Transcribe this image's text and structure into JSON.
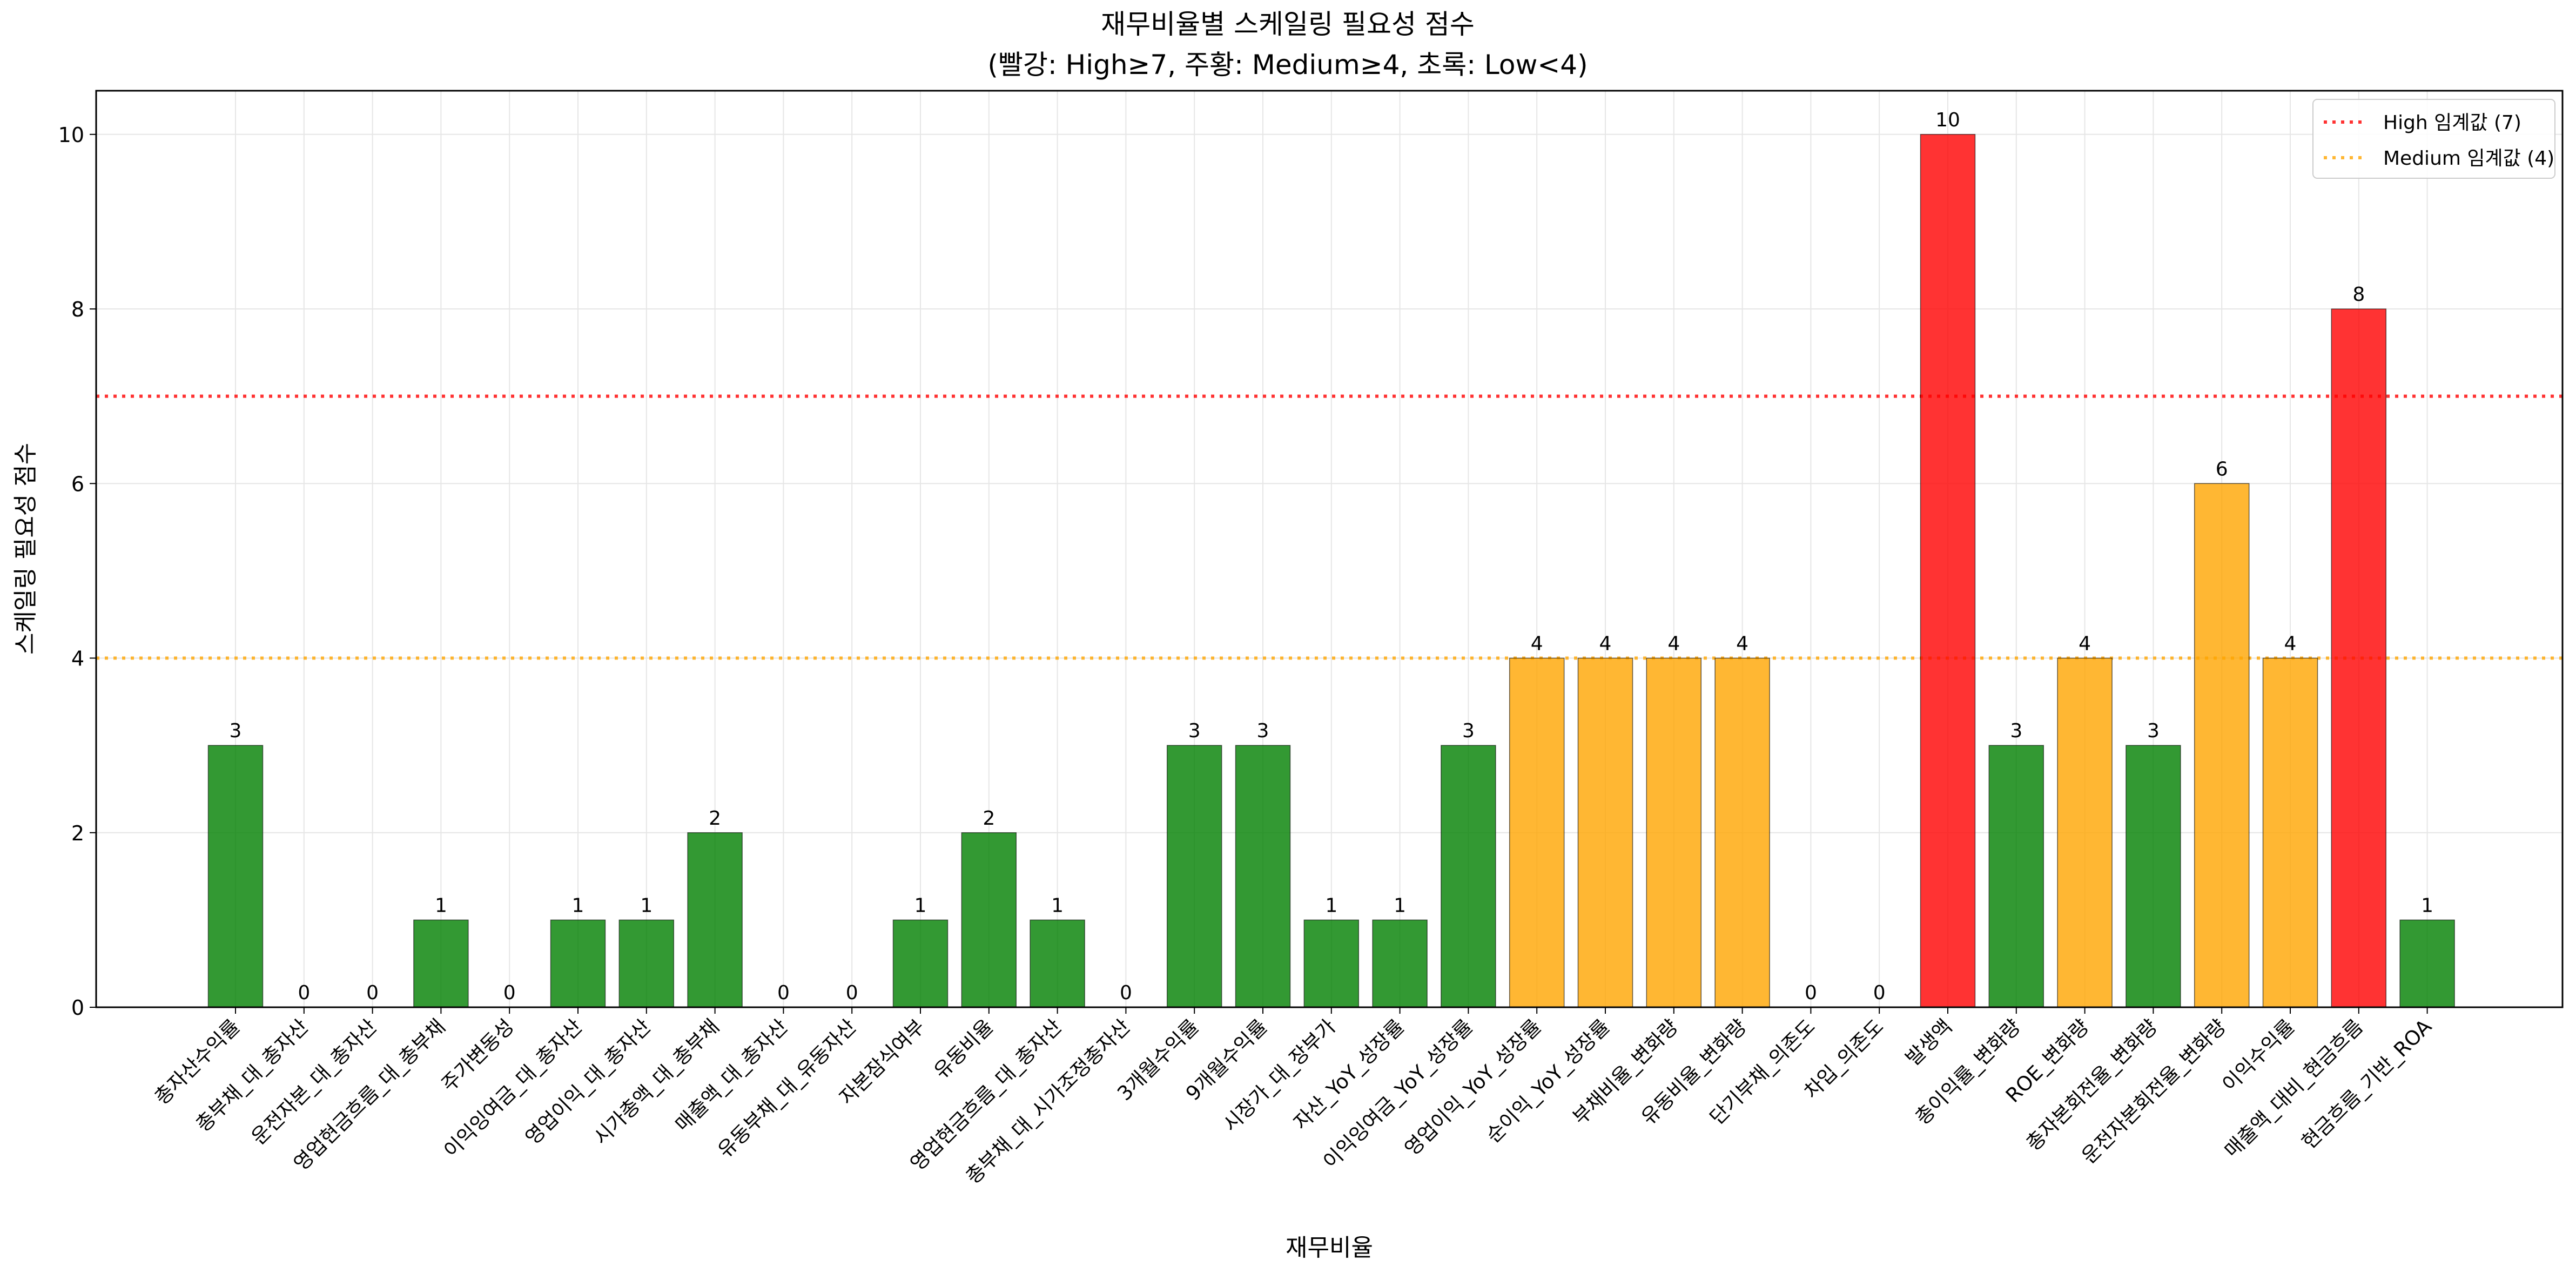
{
  "chart_data": {
    "type": "bar",
    "title": "재무비율별 스케일링 필요성 점수",
    "subtitle": "(빨강: High≥7, 주황: Medium≥4, 초록: Low<4)",
    "xlabel": "재무비율",
    "ylabel": "스케일링 필요성 점수",
    "ylim": [
      0,
      10.5
    ],
    "yticks": [
      0,
      2,
      4,
      6,
      8,
      10
    ],
    "grid": true,
    "legend_position": "top-right",
    "categories": [
      "총자산수익률",
      "총부채_대_총자산",
      "운전자본_대_총자산",
      "영업현금흐름_대_총부채",
      "주가변동성",
      "이익잉여금_대_총자산",
      "영업이익_대_총자산",
      "시가총액_대_총부채",
      "매출액_대_총자산",
      "유동부채_대_유동자산",
      "자본잠식여부",
      "유동비율",
      "영업현금흐름_대_총자산",
      "총부채_대_시가조정총자산",
      "3개월수익률",
      "9개월수익률",
      "시장가_대_장부가",
      "자산_YoY_성장률",
      "이익잉여금_YoY_성장률",
      "영업이익_YoY_성장률",
      "순이익_YoY_성장률",
      "부채비율_변화량",
      "유동비율_변화량",
      "단기부채_의존도",
      "차입_의존도",
      "발생액",
      "총이익률_변화량",
      "ROE_변화량",
      "총자본회전율_변화량",
      "운전자본회전율_변화량",
      "이익수익률",
      "매출액_대비_현금흐름",
      "현금흐름_기반_ROA"
    ],
    "values": [
      3,
      0,
      0,
      1,
      0,
      1,
      1,
      2,
      0,
      0,
      1,
      2,
      1,
      0,
      3,
      3,
      1,
      1,
      3,
      4,
      4,
      4,
      4,
      0,
      0,
      10,
      3,
      4,
      3,
      6,
      4,
      8,
      1
    ],
    "thresholds": [
      {
        "name": "High 임계값 (7)",
        "value": 7,
        "color": "#ff0000"
      },
      {
        "name": "Medium 임계값 (4)",
        "value": 4,
        "color": "#ffa500"
      }
    ],
    "colors": {
      "high": "#ff0000",
      "medium": "#ffa500",
      "low": "#008000"
    }
  }
}
